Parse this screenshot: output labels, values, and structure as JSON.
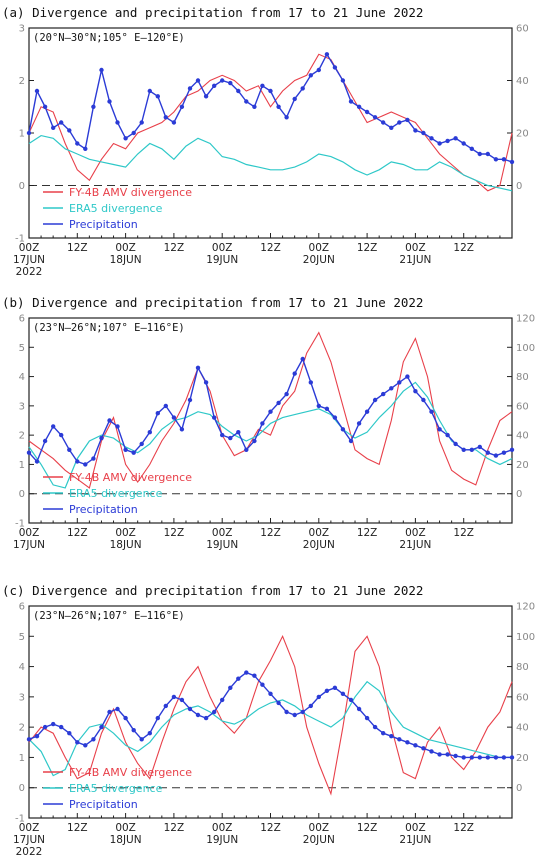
{
  "colors": {
    "fy4b": "#e8404a",
    "era5": "#2ec8c8",
    "precip": "#2b3bd6",
    "axis": "#222222"
  },
  "chart_data": [
    {
      "type": "line",
      "title": "(a) Divergence and precipitation from 17 to 21 June 2022",
      "region": "(20°N–30°N;105° E–120°E)",
      "xlabel_ticks": [
        "00Z",
        "12Z",
        "00Z",
        "12Z",
        "00Z",
        "12Z",
        "00Z",
        "12Z",
        "00Z",
        "12Z"
      ],
      "date_labels": [
        "17JUN",
        "18JUN",
        "19JUN",
        "20JUN",
        "21JUN"
      ],
      "year_label": "2022",
      "x_hours": [
        0,
        12,
        24,
        36,
        48,
        60,
        72,
        84,
        96,
        108
      ],
      "xlim": [
        0,
        120
      ],
      "ylim_left": [
        -1,
        3
      ],
      "yticks_left": [
        -1,
        0,
        1,
        2,
        3
      ],
      "ylim_right": [
        -20,
        60
      ],
      "yticks_right": [
        0,
        20,
        40,
        60
      ],
      "legend": [
        "FY-4B AMV divergence",
        "ERA5 divergence",
        "Precipitation"
      ],
      "series": [
        {
          "name": "FY-4B AMV divergence",
          "axis": "left",
          "x": [
            0,
            3,
            6,
            9,
            12,
            15,
            18,
            21,
            24,
            27,
            30,
            33,
            36,
            39,
            42,
            45,
            48,
            51,
            54,
            57,
            60,
            63,
            66,
            69,
            72,
            75,
            78,
            81,
            84,
            87,
            90,
            93,
            96,
            99,
            102,
            105,
            108,
            111,
            114,
            117,
            120
          ],
          "values": [
            1.0,
            1.5,
            1.4,
            0.8,
            0.3,
            0.1,
            0.5,
            0.8,
            0.7,
            1.0,
            1.1,
            1.2,
            1.4,
            1.7,
            1.8,
            2.0,
            2.1,
            2.0,
            1.8,
            1.9,
            1.5,
            1.8,
            2.0,
            2.1,
            2.5,
            2.4,
            2.0,
            1.6,
            1.2,
            1.3,
            1.4,
            1.3,
            1.2,
            0.9,
            0.6,
            0.4,
            0.2,
            0.1,
            -0.1,
            0.0,
            1.0
          ]
        },
        {
          "name": "ERA5 divergence",
          "axis": "left",
          "x": [
            0,
            3,
            6,
            9,
            12,
            15,
            18,
            21,
            24,
            27,
            30,
            33,
            36,
            39,
            42,
            45,
            48,
            51,
            54,
            57,
            60,
            63,
            66,
            69,
            72,
            75,
            78,
            81,
            84,
            87,
            90,
            93,
            96,
            99,
            102,
            105,
            108,
            111,
            114,
            117,
            120
          ],
          "values": [
            0.8,
            0.95,
            0.9,
            0.7,
            0.6,
            0.5,
            0.45,
            0.4,
            0.35,
            0.6,
            0.8,
            0.7,
            0.5,
            0.75,
            0.9,
            0.8,
            0.55,
            0.5,
            0.4,
            0.35,
            0.3,
            0.3,
            0.35,
            0.45,
            0.6,
            0.55,
            0.45,
            0.3,
            0.2,
            0.3,
            0.45,
            0.4,
            0.3,
            0.3,
            0.45,
            0.35,
            0.2,
            0.1,
            0.0,
            -0.05,
            -0.1
          ]
        },
        {
          "name": "Precipitation",
          "axis": "right",
          "x": [
            0,
            2,
            4,
            6,
            8,
            10,
            12,
            14,
            16,
            18,
            20,
            22,
            24,
            26,
            28,
            30,
            32,
            34,
            36,
            38,
            40,
            42,
            44,
            46,
            48,
            50,
            52,
            54,
            56,
            58,
            60,
            62,
            64,
            66,
            68,
            70,
            72,
            74,
            76,
            78,
            80,
            82,
            84,
            86,
            88,
            90,
            92,
            94,
            96,
            98,
            100,
            102,
            104,
            106,
            108,
            110,
            112,
            114,
            116,
            118,
            120
          ],
          "values": [
            20,
            36,
            30,
            22,
            24,
            21,
            16,
            14,
            30,
            44,
            32,
            24,
            18,
            20,
            24,
            36,
            34,
            26,
            24,
            30,
            37,
            40,
            34,
            38,
            40,
            39,
            36,
            32,
            30,
            38,
            36,
            30,
            26,
            33,
            37,
            42,
            44,
            50,
            45,
            40,
            32,
            30,
            28,
            26,
            24,
            22,
            24,
            25,
            21,
            20,
            18,
            16,
            17,
            18,
            16,
            14,
            12,
            12,
            10,
            10,
            9
          ]
        }
      ]
    },
    {
      "type": "line",
      "title": "(b) Divergence and precipitation from 17 to 21 June 2022",
      "region": "(23°N–26°N;107° E–116°E)",
      "xlabel_ticks": [
        "00Z",
        "12Z",
        "00Z",
        "12Z",
        "00Z",
        "12Z",
        "00Z",
        "12Z",
        "00Z",
        "12Z"
      ],
      "date_labels": [
        "17JUN",
        "18JUN",
        "19JUN",
        "20JUN",
        "21JUN"
      ],
      "year_label": "",
      "x_hours": [
        0,
        12,
        24,
        36,
        48,
        60,
        72,
        84,
        96,
        108
      ],
      "xlim": [
        0,
        120
      ],
      "ylim_left": [
        -1,
        6
      ],
      "yticks_left": [
        -1,
        0,
        1,
        2,
        3,
        4,
        5,
        6
      ],
      "ylim_right": [
        -20,
        120
      ],
      "yticks_right": [
        0,
        20,
        40,
        60,
        80,
        100,
        120
      ],
      "legend": [
        "FY-4B AMV divergence",
        "ERA5 divergence",
        "Precipitation"
      ],
      "series": [
        {
          "name": "FY-4B AMV divergence",
          "axis": "left",
          "x": [
            0,
            3,
            6,
            9,
            12,
            15,
            18,
            21,
            24,
            27,
            30,
            33,
            36,
            39,
            42,
            45,
            48,
            51,
            54,
            57,
            60,
            63,
            66,
            69,
            72,
            75,
            78,
            81,
            84,
            87,
            90,
            93,
            96,
            99,
            102,
            105,
            108,
            111,
            114,
            117,
            120
          ],
          "values": [
            1.8,
            1.5,
            1.2,
            0.8,
            0.5,
            0.2,
            1.8,
            2.6,
            1.0,
            0.4,
            1.0,
            1.8,
            2.4,
            3.2,
            4.3,
            3.5,
            2.0,
            1.3,
            1.5,
            2.2,
            2.0,
            3.0,
            3.5,
            4.8,
            5.5,
            4.5,
            3.0,
            1.5,
            1.2,
            1.0,
            2.5,
            4.5,
            5.3,
            4.0,
            1.8,
            0.8,
            0.5,
            0.3,
            1.5,
            2.5,
            2.8
          ]
        },
        {
          "name": "ERA5 divergence",
          "axis": "left",
          "x": [
            0,
            3,
            6,
            9,
            12,
            15,
            18,
            21,
            24,
            27,
            30,
            33,
            36,
            39,
            42,
            45,
            48,
            51,
            54,
            57,
            60,
            63,
            66,
            69,
            72,
            75,
            78,
            81,
            84,
            87,
            90,
            93,
            96,
            99,
            102,
            105,
            108,
            111,
            114,
            117,
            120
          ],
          "values": [
            1.6,
            1.0,
            0.3,
            0.2,
            1.2,
            1.8,
            2.0,
            1.9,
            1.6,
            1.4,
            1.7,
            2.2,
            2.5,
            2.6,
            2.8,
            2.7,
            2.3,
            2.0,
            1.8,
            2.0,
            2.4,
            2.6,
            2.7,
            2.8,
            2.9,
            2.7,
            2.2,
            1.9,
            2.1,
            2.6,
            3.0,
            3.5,
            3.8,
            3.3,
            2.5,
            1.8,
            1.5,
            1.5,
            1.2,
            1.0,
            1.2
          ]
        },
        {
          "name": "Precipitation",
          "axis": "right",
          "x": [
            0,
            2,
            4,
            6,
            8,
            10,
            12,
            14,
            16,
            18,
            20,
            22,
            24,
            26,
            28,
            30,
            32,
            34,
            36,
            38,
            40,
            42,
            44,
            46,
            48,
            50,
            52,
            54,
            56,
            58,
            60,
            62,
            64,
            66,
            68,
            70,
            72,
            74,
            76,
            78,
            80,
            82,
            84,
            86,
            88,
            90,
            92,
            94,
            96,
            98,
            100,
            102,
            104,
            106,
            108,
            110,
            112,
            114,
            116,
            118,
            120
          ],
          "values": [
            28,
            22,
            36,
            46,
            40,
            30,
            22,
            20,
            24,
            38,
            50,
            46,
            30,
            28,
            34,
            42,
            55,
            60,
            52,
            44,
            64,
            86,
            76,
            52,
            40,
            38,
            42,
            30,
            36,
            48,
            56,
            62,
            68,
            82,
            92,
            76,
            60,
            58,
            52,
            44,
            36,
            48,
            56,
            64,
            68,
            72,
            76,
            80,
            70,
            64,
            56,
            44,
            40,
            34,
            30,
            30,
            32,
            28,
            26,
            28,
            30
          ]
        }
      ]
    },
    {
      "type": "line",
      "title": "(c) Divergence and precipitation from 17 to 21 June 2022",
      "region": "(23°N–26°N;107° E–116°E)",
      "xlabel_ticks": [
        "00Z",
        "12Z",
        "00Z",
        "12Z",
        "00Z",
        "12Z",
        "00Z",
        "12Z",
        "00Z",
        "12Z"
      ],
      "date_labels": [
        "17JUN",
        "18JUN",
        "19JUN",
        "20JUN",
        "21JUN"
      ],
      "year_label": "2022",
      "x_hours": [
        0,
        12,
        24,
        36,
        48,
        60,
        72,
        84,
        96,
        108
      ],
      "xlim": [
        0,
        120
      ],
      "ylim_left": [
        -1,
        6
      ],
      "yticks_left": [
        -1,
        0,
        1,
        2,
        3,
        4,
        5,
        6
      ],
      "ylim_right": [
        -20,
        120
      ],
      "yticks_right": [
        0,
        20,
        40,
        60,
        80,
        100,
        120
      ],
      "legend": [
        "FY-4B AMV divergence",
        "ERA5 divergence",
        "Precipitation"
      ],
      "series": [
        {
          "name": "FY-4B AMV divergence",
          "axis": "left",
          "x": [
            0,
            3,
            6,
            9,
            12,
            15,
            18,
            21,
            24,
            27,
            30,
            33,
            36,
            39,
            42,
            45,
            48,
            51,
            54,
            57,
            60,
            63,
            66,
            69,
            72,
            75,
            78,
            81,
            84,
            87,
            90,
            93,
            96,
            99,
            102,
            105,
            108,
            111,
            114,
            117,
            120
          ],
          "values": [
            1.5,
            2.0,
            1.8,
            1.0,
            0.3,
            0.5,
            1.8,
            2.6,
            1.5,
            0.8,
            0.3,
            1.5,
            2.6,
            3.5,
            4.0,
            3.0,
            2.2,
            1.8,
            2.3,
            3.5,
            4.2,
            5.0,
            4.0,
            2.0,
            0.8,
            -0.2,
            2.0,
            4.5,
            5.0,
            4.0,
            2.0,
            0.5,
            0.3,
            1.5,
            2.0,
            1.0,
            0.6,
            1.2,
            2.0,
            2.5,
            3.5
          ]
        },
        {
          "name": "ERA5 divergence",
          "axis": "left",
          "x": [
            0,
            3,
            6,
            9,
            12,
            15,
            18,
            21,
            24,
            27,
            30,
            33,
            36,
            39,
            42,
            45,
            48,
            51,
            54,
            57,
            60,
            63,
            66,
            69,
            72,
            75,
            78,
            81,
            84,
            87,
            90,
            93,
            96,
            99,
            102,
            105,
            108,
            111,
            114,
            117,
            120
          ],
          "values": [
            1.6,
            1.2,
            0.4,
            0.6,
            1.5,
            2.0,
            2.1,
            1.8,
            1.4,
            1.2,
            1.5,
            2.0,
            2.4,
            2.6,
            2.7,
            2.5,
            2.2,
            2.1,
            2.3,
            2.6,
            2.8,
            2.9,
            2.7,
            2.4,
            2.2,
            2.0,
            2.3,
            3.0,
            3.5,
            3.2,
            2.5,
            2.0,
            1.8,
            1.6,
            1.5,
            1.4,
            1.3,
            1.2,
            1.1,
            1.0,
            1.0
          ]
        },
        {
          "name": "Precipitation",
          "axis": "right",
          "x": [
            0,
            2,
            4,
            6,
            8,
            10,
            12,
            14,
            16,
            18,
            20,
            22,
            24,
            26,
            28,
            30,
            32,
            34,
            36,
            38,
            40,
            42,
            44,
            46,
            48,
            50,
            52,
            54,
            56,
            58,
            60,
            62,
            64,
            66,
            68,
            70,
            72,
            74,
            76,
            78,
            80,
            82,
            84,
            86,
            88,
            90,
            92,
            94,
            96,
            98,
            100,
            102,
            104,
            106,
            108,
            110,
            112,
            114,
            116,
            118,
            120
          ],
          "values": [
            32,
            34,
            40,
            42,
            40,
            36,
            30,
            28,
            32,
            40,
            50,
            52,
            46,
            38,
            32,
            36,
            46,
            54,
            60,
            58,
            52,
            48,
            46,
            50,
            58,
            66,
            72,
            76,
            74,
            68,
            62,
            56,
            50,
            48,
            50,
            54,
            60,
            64,
            66,
            62,
            58,
            52,
            46,
            40,
            36,
            34,
            32,
            30,
            28,
            26,
            24,
            22,
            22,
            21,
            20,
            20,
            20,
            20,
            20,
            20,
            20
          ]
        }
      ]
    }
  ]
}
